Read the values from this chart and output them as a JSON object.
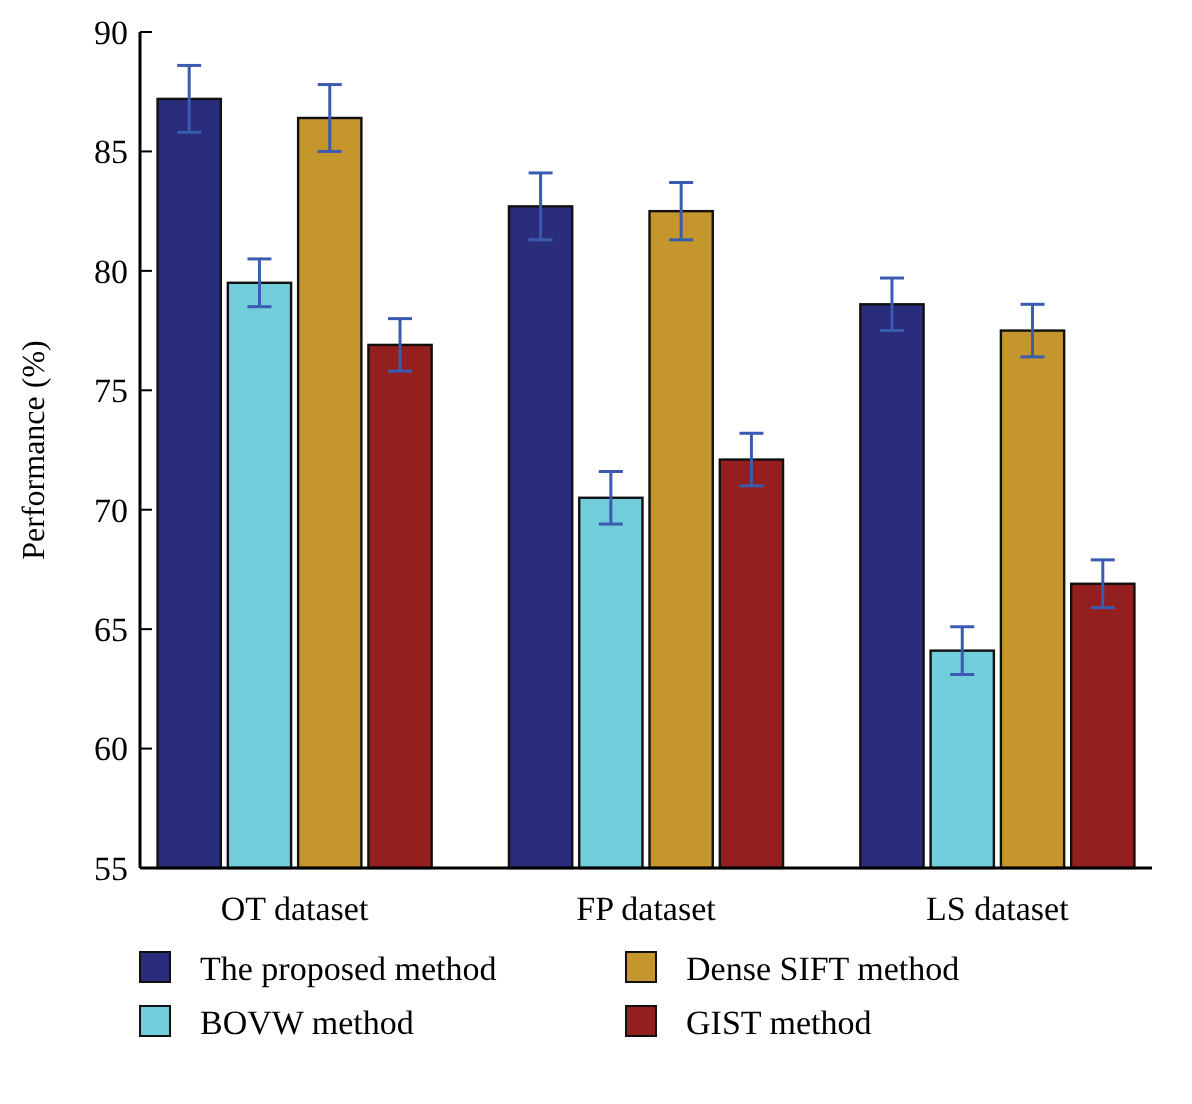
{
  "chart_data": {
    "type": "bar",
    "ylabel": "Performance (%)",
    "categories": [
      "OT dataset",
      "FP dataset",
      "LS dataset"
    ],
    "series": [
      {
        "name": "The proposed method",
        "color": "#2a2d7c",
        "values": [
          87.2,
          82.7,
          78.6
        ],
        "errors": [
          1.4,
          1.4,
          1.1
        ]
      },
      {
        "name": "BOVW method",
        "color": "#70cdd9",
        "values": [
          79.5,
          70.5,
          64.1
        ],
        "errors": [
          1.0,
          1.1,
          1.0
        ]
      },
      {
        "name": "Dense SIFT method",
        "color": "#c5962b",
        "values": [
          86.4,
          82.5,
          77.5
        ],
        "errors": [
          1.4,
          1.2,
          1.1
        ]
      },
      {
        "name": "GIST method",
        "color": "#941f1f",
        "values": [
          76.9,
          72.1,
          66.9
        ],
        "errors": [
          1.1,
          1.1,
          1.0
        ]
      }
    ],
    "ylim": [
      55,
      90
    ],
    "yticks": [
      55,
      60,
      65,
      70,
      75,
      80,
      85,
      90
    ],
    "grid": false,
    "legend": "bottom"
  }
}
